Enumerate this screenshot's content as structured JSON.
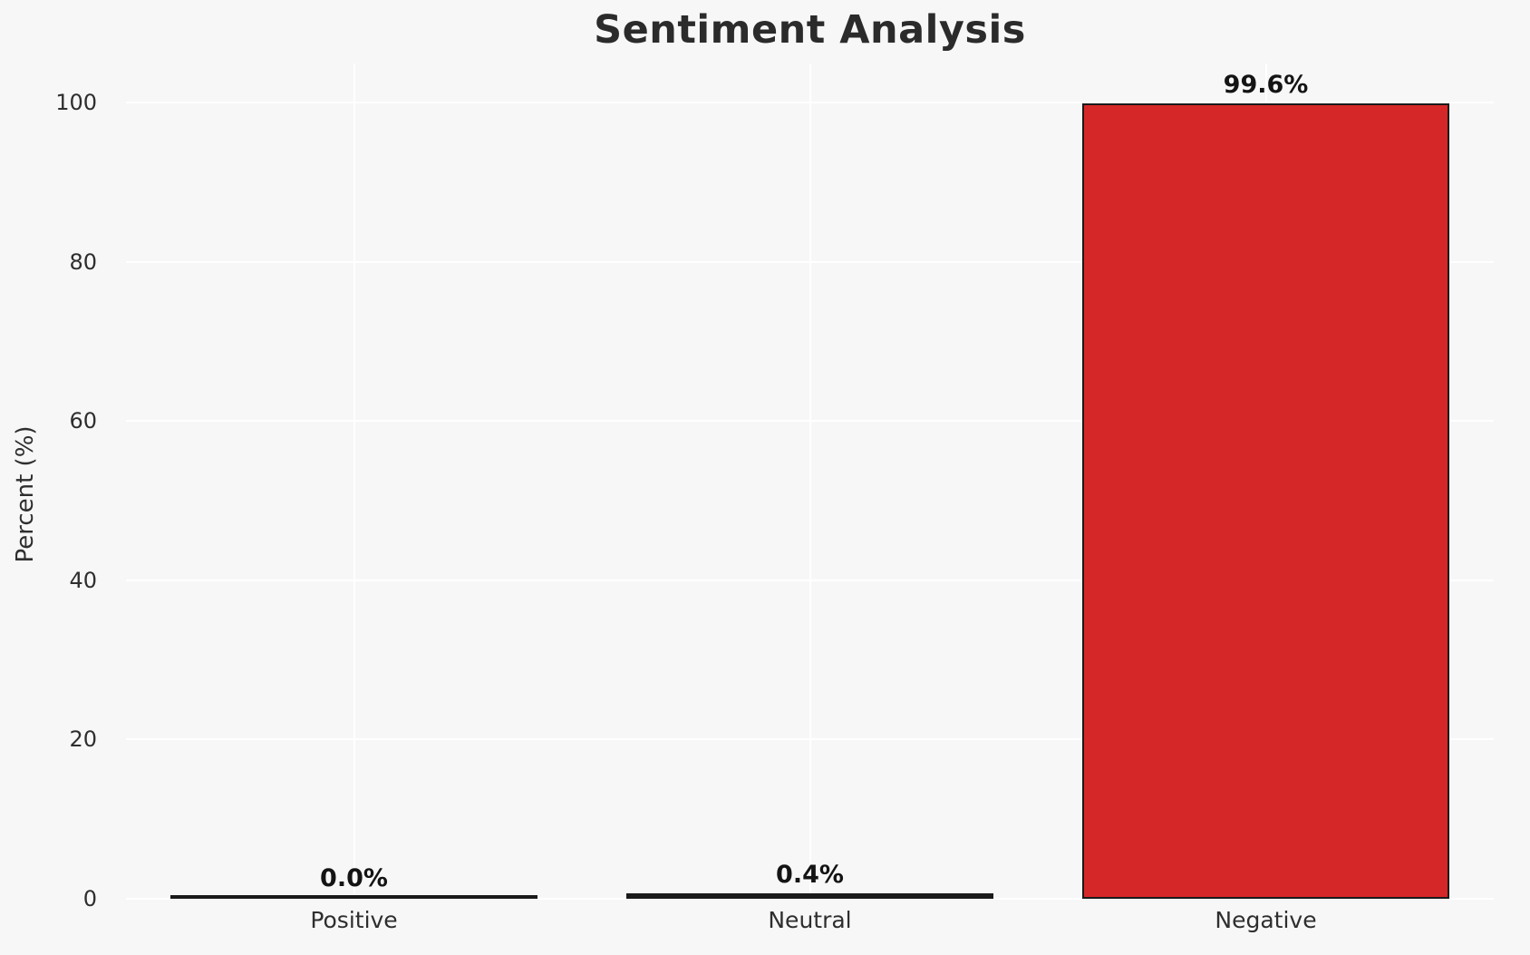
{
  "title": "Sentiment Analysis",
  "ylabel": "Percent (%)",
  "chart_data": {
    "type": "bar",
    "title": "Sentiment Analysis",
    "categories": [
      "Positive",
      "Neutral",
      "Negative"
    ],
    "values": [
      0.0,
      0.4,
      99.6
    ],
    "value_labels": [
      "0.0%",
      "0.4%",
      "99.6%"
    ],
    "bar_colors": [
      "#1a1a1a",
      "#1a1a1a",
      "#d62728"
    ],
    "bar_edge_color": "#1a1a1a",
    "xlabel": "",
    "ylabel": "Percent (%)",
    "ylim": [
      0,
      105
    ],
    "yticks": [
      "0",
      "20",
      "40",
      "60",
      "80",
      "100"
    ],
    "grid": "on",
    "grid_color": "#ffffff",
    "plot_background": "#f7f7f7",
    "legend_position": "none"
  }
}
